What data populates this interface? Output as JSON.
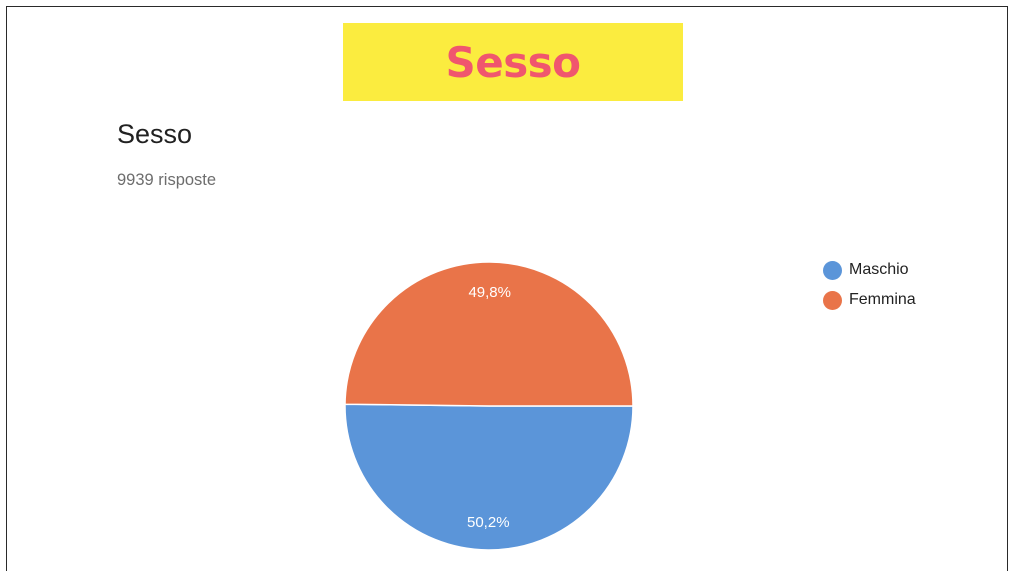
{
  "banner": {
    "title": "Sesso"
  },
  "question": {
    "title": "Sesso",
    "subtitle": "9939 risposte"
  },
  "colors": {
    "banner_bg": "#fbec3f",
    "banner_text": "#f0566e",
    "maschio": "#5b95d9",
    "femmina": "#e97449"
  },
  "chart_data": {
    "type": "pie",
    "title": "Sesso",
    "total_label": "9939 risposte",
    "categories": [
      "Maschio",
      "Femmina"
    ],
    "values": [
      50.2,
      49.8
    ],
    "labels": [
      "50,2%",
      "49,8%"
    ],
    "colors": [
      "#5b95d9",
      "#e97449"
    ],
    "legend_position": "right"
  }
}
